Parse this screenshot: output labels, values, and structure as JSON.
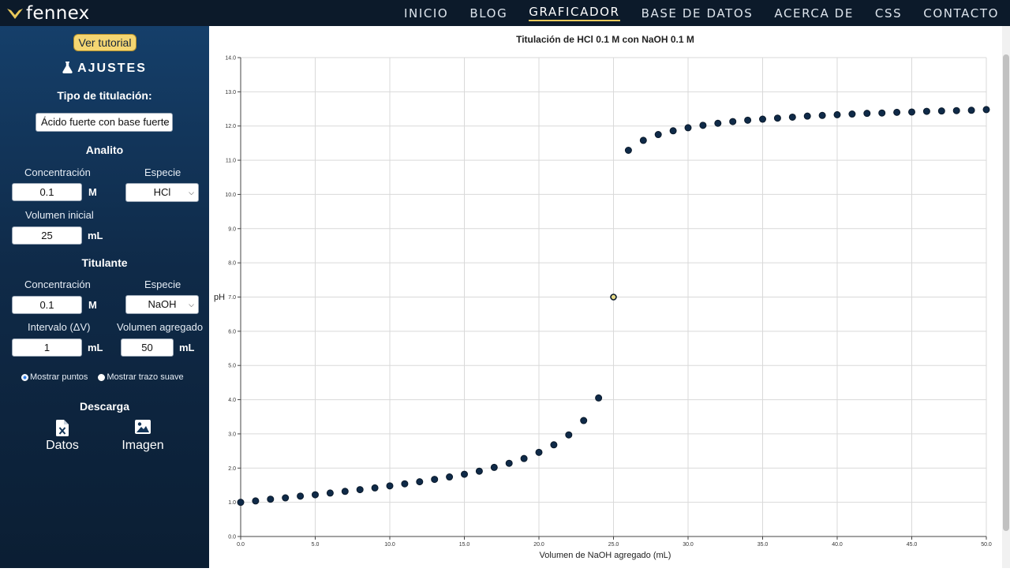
{
  "brand": {
    "name": "fennex",
    "icon": "fennex-logo-icon"
  },
  "nav": {
    "items": [
      {
        "label": "INICIO",
        "active": false
      },
      {
        "label": "BLOG",
        "active": false
      },
      {
        "label": "GRAFICADOR",
        "active": true
      },
      {
        "label": "BASE DE DATOS",
        "active": false
      },
      {
        "label": "ACERCA DE",
        "active": false
      },
      {
        "label": "CSS",
        "active": false
      },
      {
        "label": "CONTACTO",
        "active": false
      }
    ]
  },
  "sidebar": {
    "tutorial_button": "Ver tutorial",
    "settings_title": "AJUSTES",
    "settings_icon": "flask-icon",
    "titration_type_label": "Tipo de titulación:",
    "titration_type_value": "Ácido fuerte con base fuerte",
    "analyte": {
      "title": "Analito",
      "concentration_label": "Concentración",
      "concentration_value": "0.1",
      "concentration_unit": "M",
      "species_label": "Especie",
      "species_value": "HCl",
      "volume_label": "Volumen inicial",
      "volume_value": "25",
      "volume_unit": "mL"
    },
    "titrant": {
      "title": "Titulante",
      "concentration_label": "Concentración",
      "concentration_value": "0.1",
      "concentration_unit": "M",
      "species_label": "Especie",
      "species_value": "NaOH",
      "interval_label": "Intervalo (ΔV)",
      "interval_value": "1",
      "interval_unit": "mL",
      "added_volume_label": "Volumen agregado",
      "added_volume_value": "50",
      "added_volume_unit": "mL"
    },
    "show_points_label": "Mostrar puntos",
    "show_points_checked": true,
    "smooth_line_label": "Mostrar trazo suave",
    "smooth_line_checked": false,
    "download_title": "Descarga",
    "download_data_label": "Datos",
    "download_data_icon": "excel-file-icon",
    "download_image_label": "Imagen",
    "download_image_icon": "image-icon"
  },
  "colors": {
    "navbar": "#0c1a2a",
    "accent": "#e8c85a",
    "point": "#0f2a48",
    "equivalence_point_fill": "#e6d985"
  },
  "chart_data": {
    "type": "scatter",
    "title": "Titulación de HCl 0.1 M con NaOH 0.1 M",
    "xlabel": "Volumen de NaOH agregado (mL)",
    "ylabel": "pH",
    "xlim": [
      0,
      50
    ],
    "ylim": [
      0,
      14
    ],
    "x_ticks": [
      "0.0",
      "5.0",
      "10.0",
      "15.0",
      "20.0",
      "25.0",
      "30.0",
      "35.0",
      "40.0",
      "45.0",
      "50.0"
    ],
    "y_ticks": [
      "0.0",
      "1.0",
      "2.0",
      "3.0",
      "4.0",
      "5.0",
      "6.0",
      "7.0",
      "8.0",
      "9.0",
      "10.0",
      "11.0",
      "12.0",
      "13.0",
      "14.0"
    ],
    "grid": true,
    "x": [
      0,
      1,
      2,
      3,
      4,
      5,
      6,
      7,
      8,
      9,
      10,
      11,
      12,
      13,
      14,
      15,
      16,
      17,
      18,
      19,
      20,
      21,
      22,
      23,
      24,
      25,
      26,
      27,
      28,
      29,
      30,
      31,
      32,
      33,
      34,
      35,
      36,
      37,
      38,
      39,
      40,
      41,
      42,
      43,
      44,
      45,
      46,
      47,
      48,
      49,
      50
    ],
    "y": [
      1.0,
      1.04,
      1.09,
      1.13,
      1.18,
      1.22,
      1.27,
      1.32,
      1.37,
      1.42,
      1.48,
      1.54,
      1.6,
      1.67,
      1.74,
      1.82,
      1.91,
      2.02,
      2.14,
      2.28,
      2.46,
      2.68,
      2.97,
      3.39,
      4.05,
      7.0,
      11.29,
      11.58,
      11.75,
      11.86,
      11.95,
      12.02,
      12.08,
      12.13,
      12.17,
      12.2,
      12.23,
      12.26,
      12.29,
      12.31,
      12.33,
      12.35,
      12.37,
      12.38,
      12.4,
      12.41,
      12.43,
      12.44,
      12.45,
      12.46,
      12.48
    ],
    "highlight_x": 25
  }
}
